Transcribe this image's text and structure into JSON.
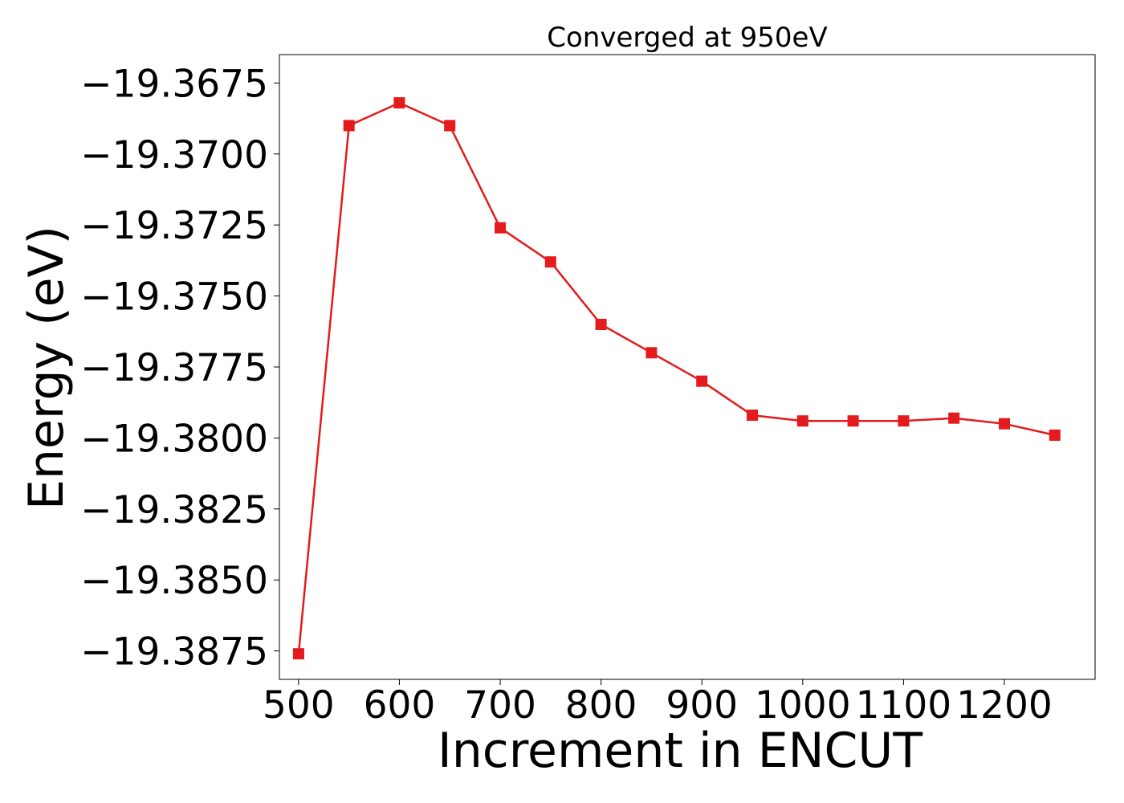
{
  "chart_data": {
    "type": "line",
    "title": "Converged at 950eV",
    "xlabel": "Increment in ENCUT",
    "ylabel": "Energy (eV)",
    "xlim": [
      481,
      1290
    ],
    "ylim": [
      -19.3885,
      -19.3665
    ],
    "xticks": [
      500,
      600,
      700,
      800,
      900,
      1000,
      1100,
      1200
    ],
    "xtick_labels": [
      "500",
      "600",
      "700",
      "800",
      "900",
      "1000",
      "1100",
      "1200"
    ],
    "yticks": [
      -19.3675,
      -19.37,
      -19.3725,
      -19.375,
      -19.3775,
      -19.38,
      -19.3825,
      -19.385,
      -19.3875
    ],
    "ytick_labels": [
      "−19.3675",
      "−19.3700",
      "−19.3725",
      "−19.3750",
      "−19.3775",
      "−19.3800",
      "−19.3825",
      "−19.3850",
      "−19.3875"
    ],
    "grid": false,
    "legend": "none",
    "series": [
      {
        "color": "#e41a1c",
        "marker": "square",
        "x": [
          500,
          550,
          600,
          650,
          700,
          750,
          800,
          850,
          900,
          950,
          1000,
          1050,
          1100,
          1150,
          1200,
          1250
        ],
        "y": [
          -19.3876,
          -19.369,
          -19.3682,
          -19.369,
          -19.3726,
          -19.3738,
          -19.376,
          -19.377,
          -19.378,
          -19.3792,
          -19.3794,
          -19.3794,
          -19.3794,
          -19.3793,
          -19.3795,
          -19.3799
        ]
      }
    ]
  }
}
